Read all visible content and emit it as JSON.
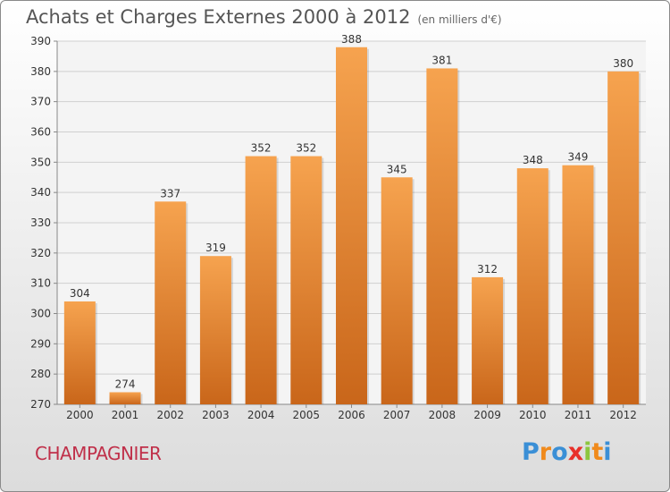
{
  "title": "Achats et Charges Externes 2000 à 2012",
  "subtitle": "(en milliers d'€)",
  "commune": "CHAMPAGNIER",
  "logo": {
    "text": "Proxiti",
    "letters": [
      "P",
      "r",
      "o",
      "x",
      "i",
      "t",
      "i"
    ],
    "colors": [
      "#3a8fd6",
      "#f08a1c",
      "#3a8fd6",
      "#e8302a",
      "#8cc63e",
      "#f08a1c",
      "#3a8fd6"
    ]
  },
  "colors": {
    "bar_light": "#f6a34f",
    "bar_dark": "#c9661a",
    "grid": "#cfcfcf",
    "axis_text": "#333333"
  },
  "chart_data": {
    "type": "bar",
    "categories": [
      "2000",
      "2001",
      "2002",
      "2003",
      "2004",
      "2005",
      "2006",
      "2007",
      "2008",
      "2009",
      "2010",
      "2011",
      "2012"
    ],
    "values": [
      304,
      274,
      337,
      319,
      352,
      352,
      388,
      345,
      381,
      312,
      348,
      349,
      380
    ],
    "title": "Achats et Charges Externes 2000 à 2012",
    "xlabel": "",
    "ylabel": "",
    "ylim": [
      270,
      390
    ],
    "yticks": [
      270,
      280,
      290,
      300,
      310,
      320,
      330,
      340,
      350,
      360,
      370,
      380,
      390
    ],
    "grid": true,
    "data_labels": true
  }
}
